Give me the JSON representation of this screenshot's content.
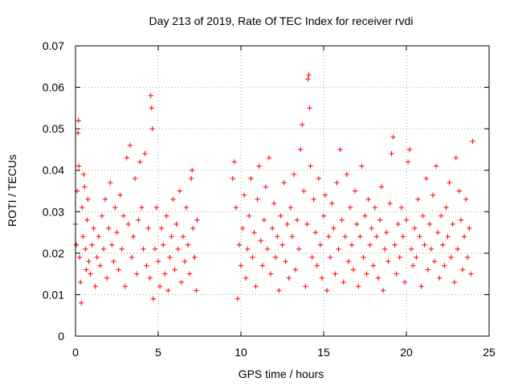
{
  "chart_data": {
    "type": "scatter",
    "title": "Day 213 of 2019, Rate Of TEC Index for receiver rvdi",
    "xlabel": "GPS time / hours",
    "ylabel": "ROTI / TECUs",
    "xlim": [
      0,
      25
    ],
    "ylim": [
      0,
      0.07
    ],
    "xticks": [
      0,
      5,
      10,
      15,
      20,
      25
    ],
    "yticks": [
      0,
      0.01,
      0.02,
      0.03,
      0.04,
      0.05,
      0.06,
      0.07
    ],
    "xtick_labels": [
      "0",
      "5",
      "10",
      "15",
      "20",
      "25"
    ],
    "ytick_labels": [
      "0",
      "0.01",
      "0.02",
      "0.03",
      "0.04",
      "0.05",
      "0.06",
      "0.07"
    ],
    "grid": true,
    "marker": "+",
    "series_color": "#ff0000",
    "data_gap_hours": [
      7.4,
      9.5
    ],
    "series": [
      {
        "name": "ROTI",
        "points": [
          [
            0.0,
            0.027
          ],
          [
            0.05,
            0.022
          ],
          [
            0.1,
            0.035
          ],
          [
            0.15,
            0.049
          ],
          [
            0.18,
            0.052
          ],
          [
            0.2,
            0.041
          ],
          [
            0.25,
            0.019
          ],
          [
            0.3,
            0.013
          ],
          [
            0.35,
            0.008
          ],
          [
            0.4,
            0.031
          ],
          [
            0.45,
            0.024
          ],
          [
            0.5,
            0.039
          ],
          [
            0.55,
            0.036
          ],
          [
            0.6,
            0.021
          ],
          [
            0.65,
            0.016
          ],
          [
            0.7,
            0.028
          ],
          [
            0.75,
            0.033
          ],
          [
            0.8,
            0.018
          ],
          [
            0.9,
            0.015
          ],
          [
            1.0,
            0.022
          ],
          [
            1.1,
            0.026
          ],
          [
            1.2,
            0.012
          ],
          [
            1.3,
            0.019
          ],
          [
            1.4,
            0.024
          ],
          [
            1.5,
            0.017
          ],
          [
            1.6,
            0.029
          ],
          [
            1.7,
            0.021
          ],
          [
            1.8,
            0.033
          ],
          [
            1.9,
            0.014
          ],
          [
            2.0,
            0.026
          ],
          [
            2.1,
            0.037
          ],
          [
            2.2,
            0.022
          ],
          [
            2.3,
            0.018
          ],
          [
            2.4,
            0.031
          ],
          [
            2.5,
            0.025
          ],
          [
            2.6,
            0.016
          ],
          [
            2.7,
            0.034
          ],
          [
            2.8,
            0.021
          ],
          [
            2.9,
            0.029
          ],
          [
            3.0,
            0.012
          ],
          [
            3.1,
            0.043
          ],
          [
            3.2,
            0.027
          ],
          [
            3.3,
            0.046
          ],
          [
            3.4,
            0.019
          ],
          [
            3.5,
            0.024
          ],
          [
            3.6,
            0.038
          ],
          [
            3.7,
            0.015
          ],
          [
            3.8,
            0.028
          ],
          [
            3.9,
            0.042
          ],
          [
            4.0,
            0.031
          ],
          [
            4.1,
            0.021
          ],
          [
            4.2,
            0.044
          ],
          [
            4.3,
            0.017
          ],
          [
            4.4,
            0.026
          ],
          [
            4.5,
            0.014
          ],
          [
            4.55,
            0.058
          ],
          [
            4.6,
            0.055
          ],
          [
            4.65,
            0.05
          ],
          [
            4.7,
            0.009
          ],
          [
            4.8,
            0.021
          ],
          [
            4.9,
            0.031
          ],
          [
            5.0,
            0.018
          ],
          [
            5.1,
            0.012
          ],
          [
            5.2,
            0.026
          ],
          [
            5.3,
            0.022
          ],
          [
            5.4,
            0.015
          ],
          [
            5.5,
            0.029
          ],
          [
            5.6,
            0.011
          ],
          [
            5.7,
            0.019
          ],
          [
            5.8,
            0.024
          ],
          [
            5.9,
            0.033
          ],
          [
            6.0,
            0.016
          ],
          [
            6.1,
            0.027
          ],
          [
            6.2,
            0.021
          ],
          [
            6.3,
            0.035
          ],
          [
            6.4,
            0.013
          ],
          [
            6.5,
            0.024
          ],
          [
            6.6,
            0.018
          ],
          [
            6.7,
            0.031
          ],
          [
            6.8,
            0.022
          ],
          [
            6.9,
            0.015
          ],
          [
            7.0,
            0.038
          ],
          [
            7.05,
            0.04
          ],
          [
            7.1,
            0.026
          ],
          [
            7.2,
            0.019
          ],
          [
            7.3,
            0.011
          ],
          [
            7.35,
            0.028
          ],
          [
            9.5,
            0.038
          ],
          [
            9.6,
            0.042
          ],
          [
            9.7,
            0.031
          ],
          [
            9.8,
            0.009
          ],
          [
            9.9,
            0.022
          ],
          [
            10.0,
            0.017
          ],
          [
            10.1,
            0.026
          ],
          [
            10.2,
            0.034
          ],
          [
            10.3,
            0.014
          ],
          [
            10.4,
            0.021
          ],
          [
            10.5,
            0.029
          ],
          [
            10.6,
            0.038
          ],
          [
            10.7,
            0.019
          ],
          [
            10.8,
            0.025
          ],
          [
            10.9,
            0.012
          ],
          [
            11.0,
            0.033
          ],
          [
            11.1,
            0.041
          ],
          [
            11.2,
            0.023
          ],
          [
            11.3,
            0.017
          ],
          [
            11.4,
            0.028
          ],
          [
            11.5,
            0.036
          ],
          [
            11.6,
            0.021
          ],
          [
            11.7,
            0.043
          ],
          [
            11.8,
            0.015
          ],
          [
            11.9,
            0.026
          ],
          [
            12.0,
            0.032
          ],
          [
            12.1,
            0.019
          ],
          [
            12.2,
            0.024
          ],
          [
            12.3,
            0.011
          ],
          [
            12.4,
            0.029
          ],
          [
            12.5,
            0.022
          ],
          [
            12.6,
            0.037
          ],
          [
            12.7,
            0.018
          ],
          [
            12.8,
            0.027
          ],
          [
            12.9,
            0.014
          ],
          [
            13.0,
            0.031
          ],
          [
            13.1,
            0.024
          ],
          [
            13.2,
            0.039
          ],
          [
            13.3,
            0.016
          ],
          [
            13.4,
            0.028
          ],
          [
            13.5,
            0.021
          ],
          [
            13.6,
            0.045
          ],
          [
            13.7,
            0.051
          ],
          [
            13.8,
            0.035
          ],
          [
            13.9,
            0.012
          ],
          [
            14.0,
            0.027
          ],
          [
            14.05,
            0.062
          ],
          [
            14.1,
            0.063
          ],
          [
            14.15,
            0.055
          ],
          [
            14.2,
            0.041
          ],
          [
            14.3,
            0.019
          ],
          [
            14.4,
            0.033
          ],
          [
            14.5,
            0.025
          ],
          [
            14.6,
            0.017
          ],
          [
            14.7,
            0.038
          ],
          [
            14.8,
            0.022
          ],
          [
            14.9,
            0.014
          ],
          [
            15.0,
            0.029
          ],
          [
            15.1,
            0.034
          ],
          [
            15.2,
            0.011
          ],
          [
            15.3,
            0.024
          ],
          [
            15.4,
            0.019
          ],
          [
            15.5,
            0.032
          ],
          [
            15.6,
            0.026
          ],
          [
            15.7,
            0.015
          ],
          [
            15.8,
            0.037
          ],
          [
            15.9,
            0.021
          ],
          [
            16.0,
            0.045
          ],
          [
            16.1,
            0.028
          ],
          [
            16.2,
            0.013
          ],
          [
            16.3,
            0.024
          ],
          [
            16.4,
            0.039
          ],
          [
            16.5,
            0.018
          ],
          [
            16.6,
            0.031
          ],
          [
            16.7,
            0.022
          ],
          [
            16.8,
            0.016
          ],
          [
            16.9,
            0.035
          ],
          [
            17.0,
            0.027
          ],
          [
            17.1,
            0.012
          ],
          [
            17.2,
            0.024
          ],
          [
            17.3,
            0.041
          ],
          [
            17.4,
            0.019
          ],
          [
            17.5,
            0.029
          ],
          [
            17.6,
            0.015
          ],
          [
            17.7,
            0.033
          ],
          [
            17.8,
            0.022
          ],
          [
            17.9,
            0.026
          ],
          [
            18.0,
            0.017
          ],
          [
            18.1,
            0.031
          ],
          [
            18.2,
            0.024
          ],
          [
            18.3,
            0.014
          ],
          [
            18.4,
            0.028
          ],
          [
            18.5,
            0.036
          ],
          [
            18.6,
            0.011
          ],
          [
            18.7,
            0.021
          ],
          [
            18.8,
            0.025
          ],
          [
            18.9,
            0.018
          ],
          [
            19.0,
            0.032
          ],
          [
            19.1,
            0.044
          ],
          [
            19.2,
            0.048
          ],
          [
            19.3,
            0.022
          ],
          [
            19.4,
            0.015
          ],
          [
            19.5,
            0.027
          ],
          [
            19.6,
            0.019
          ],
          [
            19.7,
            0.031
          ],
          [
            19.8,
            0.024
          ],
          [
            19.9,
            0.013
          ],
          [
            20.0,
            0.028
          ],
          [
            20.1,
            0.042
          ],
          [
            20.2,
            0.045
          ],
          [
            20.3,
            0.021
          ],
          [
            20.4,
            0.017
          ],
          [
            20.5,
            0.026
          ],
          [
            20.6,
            0.019
          ],
          [
            20.7,
            0.033
          ],
          [
            20.8,
            0.024
          ],
          [
            20.9,
            0.012
          ],
          [
            21.0,
            0.029
          ],
          [
            21.1,
            0.022
          ],
          [
            21.2,
            0.038
          ],
          [
            21.3,
            0.016
          ],
          [
            21.4,
            0.027
          ],
          [
            21.5,
            0.021
          ],
          [
            21.6,
            0.034
          ],
          [
            21.7,
            0.018
          ],
          [
            21.8,
            0.041
          ],
          [
            21.9,
            0.025
          ],
          [
            22.0,
            0.014
          ],
          [
            22.1,
            0.029
          ],
          [
            22.2,
            0.022
          ],
          [
            22.3,
            0.017
          ],
          [
            22.4,
            0.031
          ],
          [
            22.5,
            0.024
          ],
          [
            22.6,
            0.037
          ],
          [
            22.7,
            0.019
          ],
          [
            22.8,
            0.027
          ],
          [
            22.9,
            0.013
          ],
          [
            23.0,
            0.043
          ],
          [
            23.1,
            0.021
          ],
          [
            23.2,
            0.035
          ],
          [
            23.3,
            0.028
          ],
          [
            23.4,
            0.016
          ],
          [
            23.5,
            0.024
          ],
          [
            23.6,
            0.033
          ],
          [
            23.7,
            0.019
          ],
          [
            23.8,
            0.026
          ],
          [
            23.9,
            0.015
          ],
          [
            24.0,
            0.047
          ]
        ]
      }
    ]
  }
}
